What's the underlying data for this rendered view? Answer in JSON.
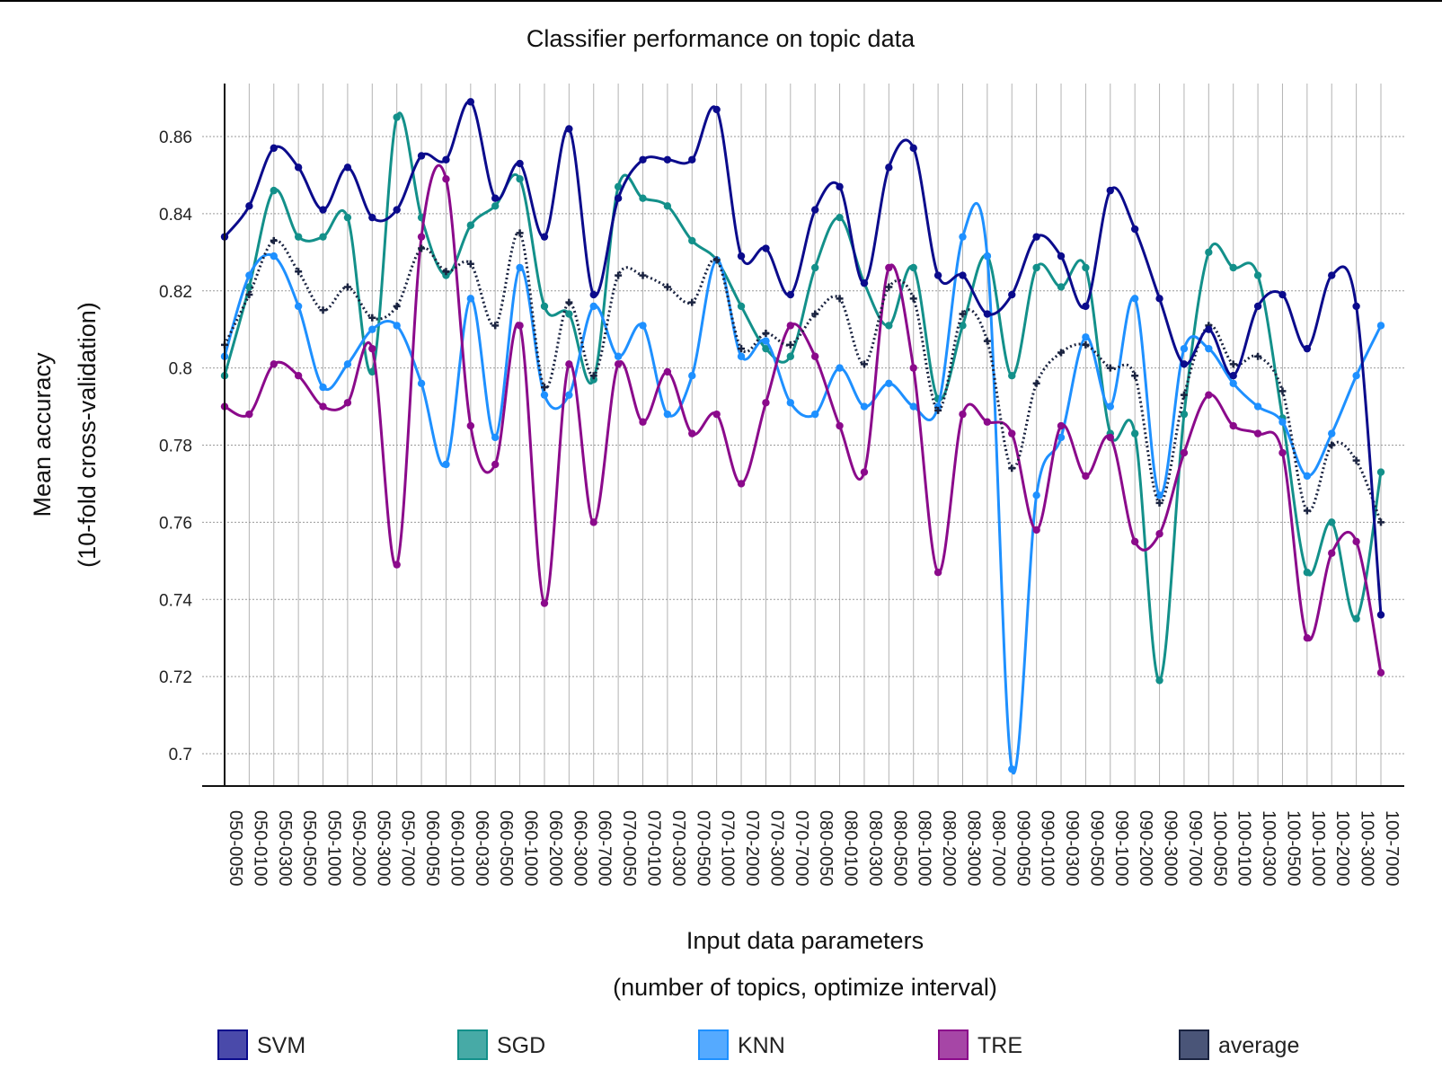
{
  "chart_data": {
    "type": "line",
    "title": "Classifier performance on topic data",
    "xlabel": "Input data parameters",
    "xlabel_sub": "(number of topics, optimize interval)",
    "ylabel": "Mean accuracy",
    "ylabel_sub": "(10-fold cross-validation)",
    "ylim": [
      0.692,
      0.874
    ],
    "yticks": [
      0.7,
      0.72,
      0.74,
      0.76,
      0.78,
      0.8,
      0.82,
      0.84,
      0.86
    ],
    "ytick_labels": [
      "0.7",
      "0.72",
      "0.74",
      "0.76",
      "0.78",
      "0.8",
      "0.82",
      "0.84",
      "0.86"
    ],
    "grid": true,
    "legend_position": "bottom",
    "categories": [
      "050-0050",
      "050-0100",
      "050-0300",
      "050-0500",
      "050-1000",
      "050-2000",
      "050-3000",
      "050-7000",
      "060-0050",
      "060-0100",
      "060-0300",
      "060-0500",
      "060-1000",
      "060-2000",
      "060-3000",
      "060-7000",
      "070-0050",
      "070-0100",
      "070-0300",
      "070-0500",
      "070-1000",
      "070-2000",
      "070-3000",
      "070-7000",
      "080-0050",
      "080-0100",
      "080-0300",
      "080-0500",
      "080-1000",
      "080-2000",
      "080-3000",
      "080-7000",
      "090-0050",
      "090-0100",
      "090-0300",
      "090-0500",
      "090-1000",
      "090-2000",
      "090-3000",
      "090-7000",
      "100-0050",
      "100-0100",
      "100-0300",
      "100-0500",
      "100-1000",
      "100-2000",
      "100-3000",
      "100-7000"
    ],
    "series": [
      {
        "name": "SVM",
        "color": "#0b0b8c",
        "legend_color": "#4a4aaa",
        "values": [
          0.834,
          0.842,
          0.857,
          0.852,
          0.841,
          0.852,
          0.839,
          0.841,
          0.855,
          0.854,
          0.869,
          0.844,
          0.853,
          0.834,
          0.862,
          0.819,
          0.844,
          0.854,
          0.854,
          0.854,
          0.867,
          0.829,
          0.831,
          0.819,
          0.841,
          0.847,
          0.822,
          0.852,
          0.857,
          0.824,
          0.824,
          0.814,
          0.819,
          0.834,
          0.829,
          0.816,
          0.846,
          0.836,
          0.818,
          0.801,
          0.81,
          0.798,
          0.816,
          0.819,
          0.805,
          0.824,
          0.816,
          0.736
        ]
      },
      {
        "name": "SGD",
        "color": "#13908a",
        "legend_color": "#47aaa6",
        "values": [
          0.798,
          0.821,
          0.846,
          0.834,
          0.834,
          0.839,
          0.799,
          0.865,
          0.839,
          0.824,
          0.837,
          0.842,
          0.849,
          0.816,
          0.814,
          0.797,
          0.847,
          0.844,
          0.842,
          0.833,
          0.828,
          0.816,
          0.805,
          0.803,
          0.826,
          0.839,
          0.822,
          0.811,
          0.826,
          0.792,
          0.811,
          0.829,
          0.798,
          0.826,
          0.821,
          0.826,
          0.783,
          0.783,
          0.719,
          0.788,
          0.83,
          0.826,
          0.824,
          0.787,
          0.747,
          0.76,
          0.735,
          0.773
        ]
      },
      {
        "name": "KNN",
        "color": "#1e90ff",
        "legend_color": "#55aaff",
        "values": [
          0.803,
          0.824,
          0.829,
          0.816,
          0.795,
          0.801,
          0.81,
          0.811,
          0.796,
          0.775,
          0.818,
          0.782,
          0.826,
          0.793,
          0.793,
          0.816,
          0.803,
          0.811,
          0.788,
          0.798,
          0.828,
          0.803,
          0.807,
          0.791,
          0.788,
          0.8,
          0.79,
          0.796,
          0.79,
          0.79,
          0.834,
          0.829,
          0.696,
          0.767,
          0.782,
          0.808,
          0.79,
          0.818,
          0.767,
          0.805,
          0.805,
          0.796,
          0.79,
          0.786,
          0.772,
          0.783,
          0.798,
          0.811
        ]
      },
      {
        "name": "TRE",
        "color": "#8b0a8b",
        "legend_color": "#a646a6",
        "values": [
          0.79,
          0.788,
          0.801,
          0.798,
          0.79,
          0.791,
          0.805,
          0.749,
          0.834,
          0.849,
          0.785,
          0.775,
          0.811,
          0.739,
          0.801,
          0.76,
          0.801,
          0.786,
          0.799,
          0.783,
          0.788,
          0.77,
          0.791,
          0.811,
          0.803,
          0.785,
          0.773,
          0.826,
          0.8,
          0.747,
          0.788,
          0.786,
          0.783,
          0.758,
          0.785,
          0.772,
          0.782,
          0.755,
          0.757,
          0.778,
          0.793,
          0.785,
          0.783,
          0.778,
          0.73,
          0.752,
          0.755,
          0.721
        ]
      },
      {
        "name": "average",
        "color": "#1a2340",
        "legend_color": "#4a5578",
        "values": [
          0.806,
          0.819,
          0.833,
          0.825,
          0.815,
          0.821,
          0.813,
          0.816,
          0.831,
          0.825,
          0.827,
          0.811,
          0.835,
          0.795,
          0.817,
          0.798,
          0.824,
          0.824,
          0.821,
          0.817,
          0.828,
          0.805,
          0.809,
          0.806,
          0.814,
          0.818,
          0.801,
          0.821,
          0.818,
          0.789,
          0.814,
          0.807,
          0.774,
          0.796,
          0.804,
          0.806,
          0.8,
          0.798,
          0.765,
          0.793,
          0.811,
          0.801,
          0.803,
          0.794,
          0.763,
          0.78,
          0.776,
          0.76
        ],
        "dotted": true
      }
    ]
  }
}
